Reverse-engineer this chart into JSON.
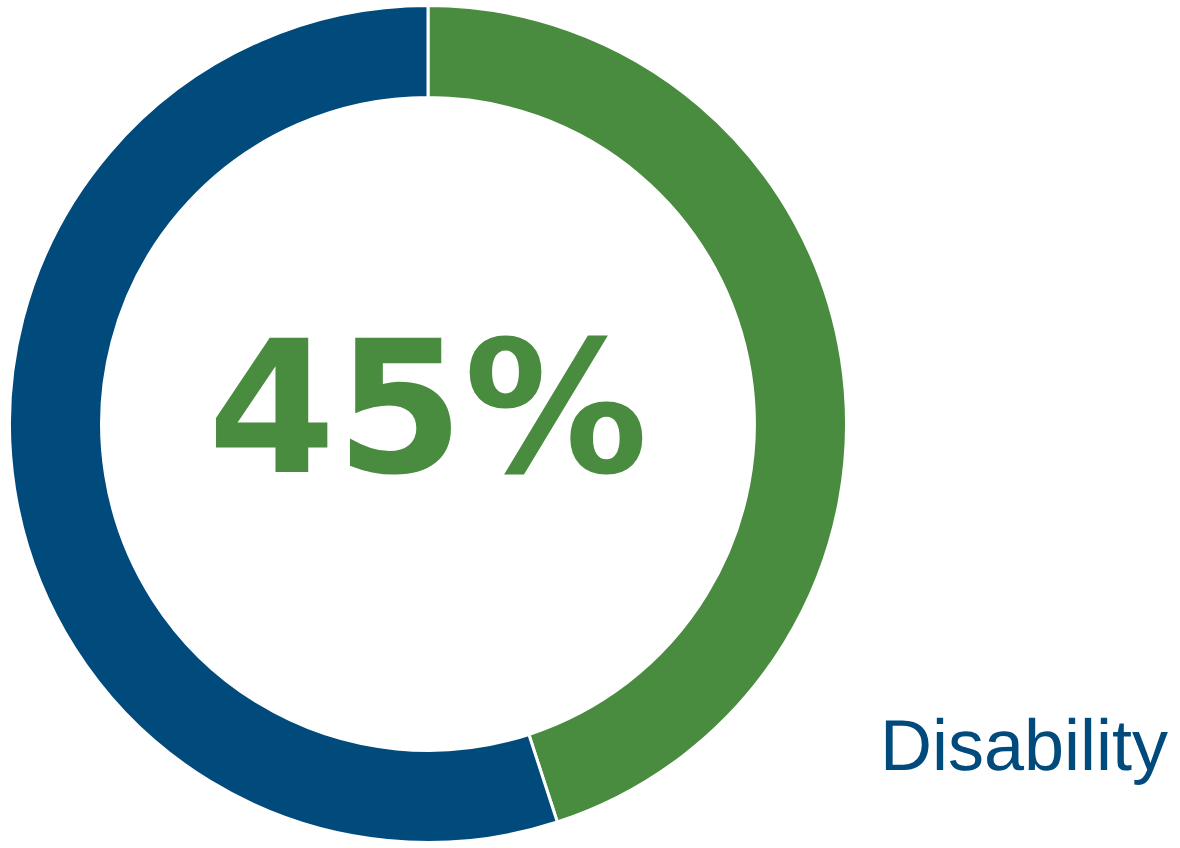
{
  "chart_data": {
    "type": "donut",
    "categories": [
      null,
      null
    ],
    "values": [
      45,
      55
    ],
    "colors": [
      "#4a8c3f",
      "#004a7c"
    ],
    "value_labels": [
      "45%",
      null
    ],
    "annotations": [
      "Disability"
    ],
    "legend": false
  }
}
